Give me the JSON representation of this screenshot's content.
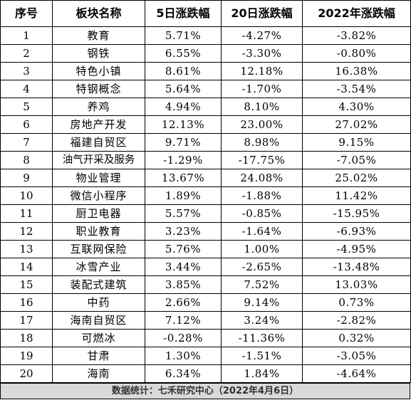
{
  "table": {
    "headers": [
      "序号",
      "板块名称",
      "5日涨跌幅",
      "20日涨跌幅",
      "2022年涨跌幅"
    ],
    "rows": [
      [
        "1",
        "教育",
        "5.71%",
        "-4.27%",
        "-3.82%"
      ],
      [
        "2",
        "钢铁",
        "6.55%",
        "-3.30%",
        "-0.80%"
      ],
      [
        "3",
        "特色小镇",
        "8.61%",
        "12.18%",
        "16.38%"
      ],
      [
        "4",
        "特钢概念",
        "5.64%",
        "-1.70%",
        "-3.54%"
      ],
      [
        "5",
        "养鸡",
        "4.94%",
        "8.10%",
        "4.30%"
      ],
      [
        "6",
        "房地产开发",
        "12.13%",
        "23.00%",
        "27.02%"
      ],
      [
        "7",
        "福建自贸区",
        "9.71%",
        "8.98%",
        "9.15%"
      ],
      [
        "8",
        "油气开采及服务",
        "-1.29%",
        "-17.75%",
        "-7.05%"
      ],
      [
        "9",
        "物业管理",
        "13.67%",
        "24.08%",
        "25.02%"
      ],
      [
        "10",
        "微信小程序",
        "1.89%",
        "-1.88%",
        "11.42%"
      ],
      [
        "11",
        "厨卫电器",
        "5.57%",
        "-0.85%",
        "-15.95%"
      ],
      [
        "12",
        "职业教育",
        "3.23%",
        "-1.64%",
        "-6.93%"
      ],
      [
        "13",
        "互联网保险",
        "5.76%",
        "1.00%",
        "-4.95%"
      ],
      [
        "14",
        "冰雪产业",
        "3.44%",
        "-2.65%",
        "-13.48%"
      ],
      [
        "15",
        "装配式建筑",
        "3.85%",
        "7.52%",
        "13.03%"
      ],
      [
        "16",
        "中药",
        "2.66%",
        "9.14%",
        "0.73%"
      ],
      [
        "17",
        "海南自贸区",
        "7.12%",
        "3.24%",
        "-2.82%"
      ],
      [
        "18",
        "可燃冰",
        "-0.28%",
        "-11.36%",
        "0.32%"
      ],
      [
        "19",
        "甘肃",
        "1.30%",
        "-1.51%",
        "-3.05%"
      ],
      [
        "20",
        "海南",
        "6.34%",
        "1.84%",
        "-4.64%"
      ]
    ]
  },
  "footer": {
    "text": "数据统计：七禾研究中心（2022年4月6日）",
    "background": "#d9d9d9"
  }
}
